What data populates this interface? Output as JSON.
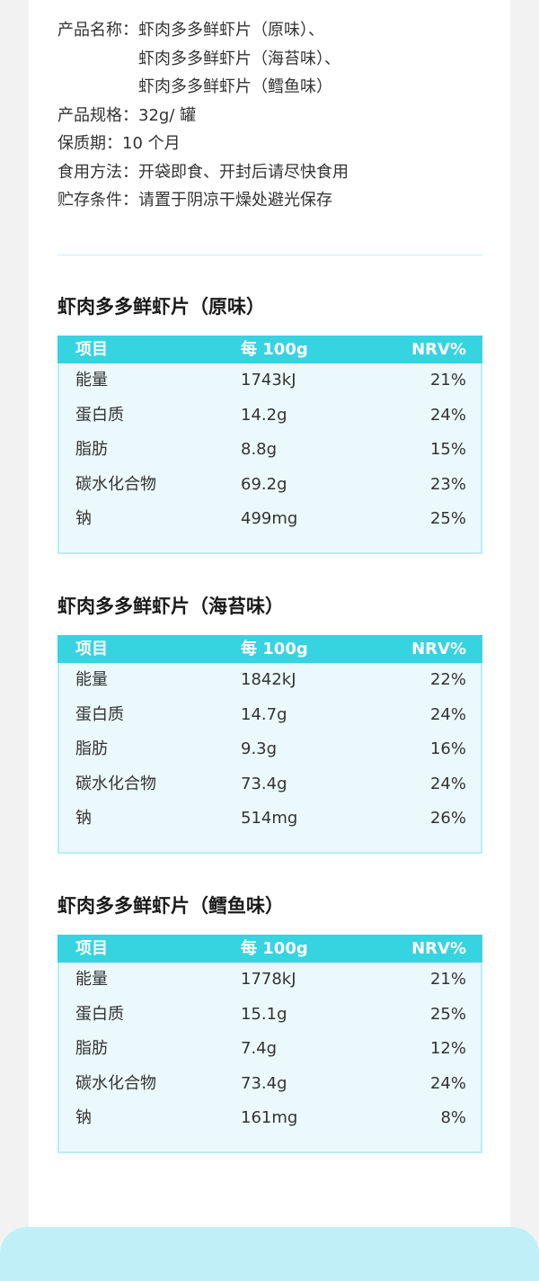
{
  "info": {
    "name_label": "产品名称：",
    "names": [
      "虾肉多多鲜虾片（原味）、",
      "虾肉多多鲜虾片（海苔味）、",
      "虾肉多多鲜虾片（鳕鱼味）"
    ],
    "spec_label": "产品规格：",
    "spec": "32g/ 罐",
    "shelf_label": "保质期：",
    "shelf": "10 个月",
    "usage_label": "食用方法：",
    "usage": "开袋即食、开封后请尽快食用",
    "storage_label": "贮存条件：",
    "storage": "请置于阴凉干燥处避光保存"
  },
  "colors": {
    "header": "#36d3e0",
    "table_bg": "#ebf9fc",
    "border": "#b8eef5",
    "footer": "#c0eff7"
  },
  "tables": [
    {
      "title": "虾肉多多鲜虾片（原味）",
      "headers": [
        "项目",
        "每 100g",
        "NRV%"
      ],
      "rows": [
        [
          "能量",
          "1743kJ",
          "21%"
        ],
        [
          "蛋白质",
          "14.2g",
          "24%"
        ],
        [
          "脂肪",
          "8.8g",
          "15%"
        ],
        [
          "碳水化合物",
          "69.2g",
          "23%"
        ],
        [
          "钠",
          "499mg",
          "25%"
        ]
      ]
    },
    {
      "title": "虾肉多多鲜虾片（海苔味）",
      "headers": [
        "项目",
        "每 100g",
        "NRV%"
      ],
      "rows": [
        [
          "能量",
          "1842kJ",
          "22%"
        ],
        [
          "蛋白质",
          "14.7g",
          "24%"
        ],
        [
          "脂肪",
          "9.3g",
          "16%"
        ],
        [
          "碳水化合物",
          "73.4g",
          "24%"
        ],
        [
          "钠",
          "514mg",
          "26%"
        ]
      ]
    },
    {
      "title": "虾肉多多鲜虾片（鳕鱼味）",
      "headers": [
        "项目",
        "每 100g",
        "NRV%"
      ],
      "rows": [
        [
          "能量",
          "1778kJ",
          "21%"
        ],
        [
          "蛋白质",
          "15.1g",
          "25%"
        ],
        [
          "脂肪",
          "7.4g",
          "12%"
        ],
        [
          "碳水化合物",
          "73.4g",
          "24%"
        ],
        [
          "钠",
          "161mg",
          "8%"
        ]
      ]
    }
  ]
}
